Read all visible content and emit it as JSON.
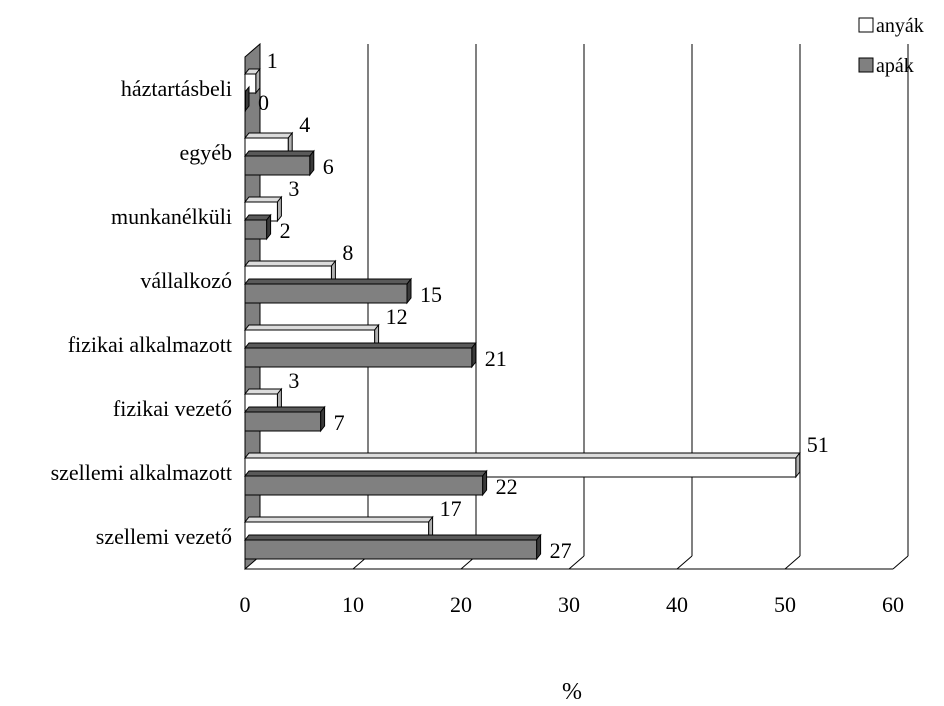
{
  "chart_data": {
    "type": "bar",
    "orientation": "horizontal",
    "categories": [
      "szellemi vezető",
      "szellemi alkalmazott",
      "fizikai vezető",
      "fizikai alkalmazott",
      "vállalkozó",
      "munkanélküli",
      "egyéb",
      "háztartásbeli"
    ],
    "series": [
      {
        "name": "anyák",
        "values": [
          17,
          51,
          3,
          12,
          8,
          3,
          4,
          1
        ],
        "color": "#ffffff"
      },
      {
        "name": "apák",
        "values": [
          27,
          22,
          7,
          21,
          15,
          2,
          6,
          0
        ],
        "color": "#808080"
      }
    ],
    "value_labels": {
      "anyák": [
        "17",
        "51",
        "3",
        "12",
        "8",
        "3",
        "4",
        "1"
      ],
      "apák": [
        "27",
        "22",
        "7",
        "21",
        "15",
        "2",
        "6",
        "0"
      ]
    },
    "x_ticks": [
      "0",
      "10",
      "20",
      "30",
      "40",
      "50",
      "60"
    ],
    "xlim": [
      0,
      60
    ],
    "xlabel": "%",
    "ylabel": "",
    "title": "",
    "grid": true,
    "legend_position": "top-right",
    "style": "3d-bar"
  }
}
